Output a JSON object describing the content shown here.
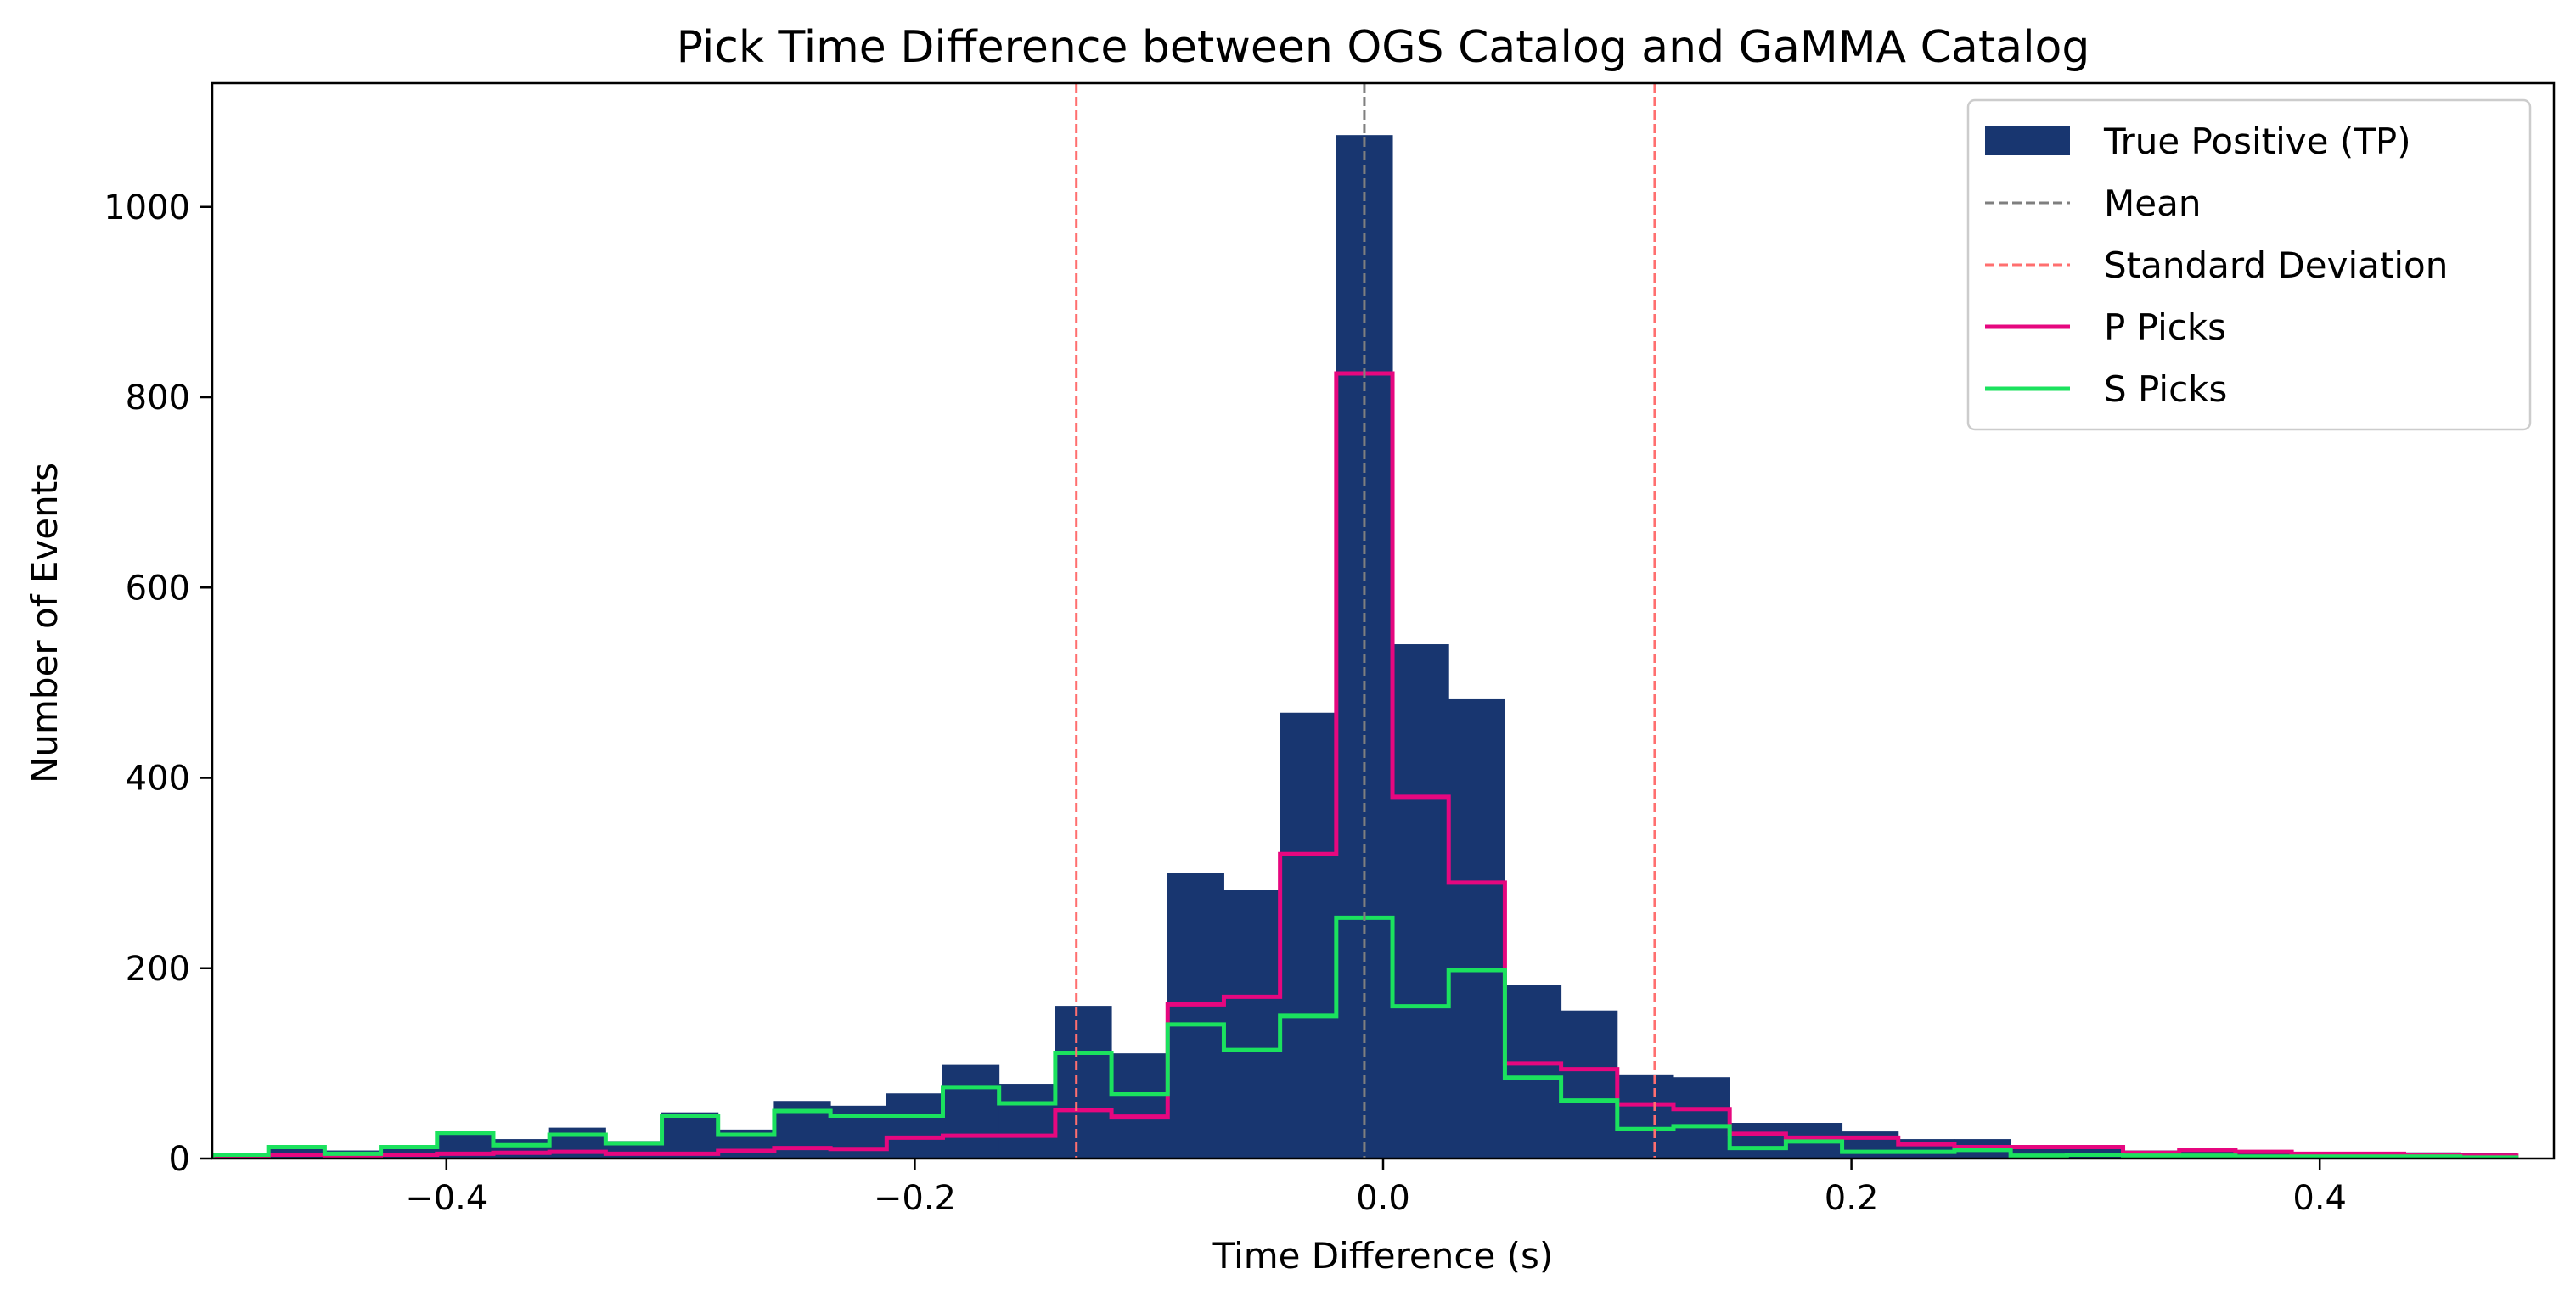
{
  "chart_data": {
    "type": "histogram",
    "title": "Pick Time Difference between OGS Catalog and GaMMA Catalog",
    "xlabel": "Time Difference (s)",
    "ylabel": "Number of Events",
    "xlim": [
      -0.5,
      0.5
    ],
    "ylim": [
      0,
      1130
    ],
    "xticks": [
      -0.4,
      -0.2,
      0.0,
      0.2,
      0.4
    ],
    "xtick_labels": [
      "−0.4",
      "−0.2",
      "0.0",
      "0.2",
      "0.4"
    ],
    "yticks": [
      0,
      200,
      400,
      600,
      800,
      1000
    ],
    "ytick_labels": [
      "0",
      "200",
      "400",
      "600",
      "800",
      "1000"
    ],
    "grid": false,
    "legend_position": "top-right",
    "bin_edges": [
      -0.5,
      -0.476,
      -0.452,
      -0.428,
      -0.404,
      -0.38,
      -0.356,
      -0.332,
      -0.308,
      -0.284,
      -0.26,
      -0.236,
      -0.212,
      -0.188,
      -0.164,
      -0.14,
      -0.116,
      -0.092,
      -0.068,
      -0.044,
      -0.02,
      0.004,
      0.028,
      0.052,
      0.076,
      0.1,
      0.124,
      0.148,
      0.172,
      0.196,
      0.22,
      0.244,
      0.268,
      0.292,
      0.316,
      0.34,
      0.364,
      0.388,
      0.412,
      0.436,
      0.46,
      0.484
    ],
    "series": [
      {
        "name": "True Positive (TP)",
        "style": "bar",
        "color": "#183670",
        "values": [
          5,
          12,
          8,
          12,
          25,
          20,
          32,
          18,
          48,
          30,
          60,
          55,
          68,
          98,
          78,
          160,
          110,
          300,
          282,
          468,
          1075,
          540,
          483,
          182,
          155,
          88,
          85,
          37,
          37,
          28,
          20,
          20,
          12,
          10,
          8,
          8,
          8,
          6,
          6,
          6,
          5
        ]
      },
      {
        "name": "P Picks",
        "style": "step",
        "color": "#e6077f",
        "values": [
          2,
          4,
          3,
          4,
          5,
          6,
          7,
          5,
          5,
          8,
          11,
          10,
          22,
          24,
          24,
          51,
          44,
          162,
          170,
          320,
          825,
          380,
          290,
          100,
          94,
          57,
          52,
          26,
          22,
          22,
          15,
          12,
          12,
          12,
          6,
          9,
          7,
          5,
          5,
          4,
          3
        ]
      },
      {
        "name": "S Picks",
        "style": "step",
        "color": "#1be25e",
        "values": [
          4,
          12,
          5,
          12,
          27,
          14,
          25,
          16,
          45,
          25,
          50,
          45,
          45,
          75,
          58,
          111,
          68,
          141,
          114,
          150,
          253,
          160,
          198,
          85,
          61,
          31,
          34,
          11,
          18,
          7,
          7,
          9,
          3,
          4,
          3,
          3,
          2,
          2,
          2,
          2,
          1
        ]
      }
    ],
    "reference_lines": [
      {
        "name": "Mean",
        "x": -0.008,
        "color": "#7f7f7f",
        "style": "dashed"
      },
      {
        "name": "Standard Deviation",
        "x": -0.131,
        "color": "#ff6f6f",
        "style": "dashed"
      },
      {
        "name": "Standard Deviation",
        "x": 0.116,
        "color": "#ff6f6f",
        "style": "dashed"
      }
    ],
    "legend": [
      {
        "label": "True Positive (TP)",
        "kind": "patch",
        "color": "#183670"
      },
      {
        "label": "Mean",
        "kind": "dashed-line",
        "color": "#7f7f7f"
      },
      {
        "label": "Standard Deviation",
        "kind": "dashed-line",
        "color": "#ff6f6f"
      },
      {
        "label": "P Picks",
        "kind": "line",
        "color": "#e6077f"
      },
      {
        "label": "S Picks",
        "kind": "line",
        "color": "#1be25e"
      }
    ]
  }
}
